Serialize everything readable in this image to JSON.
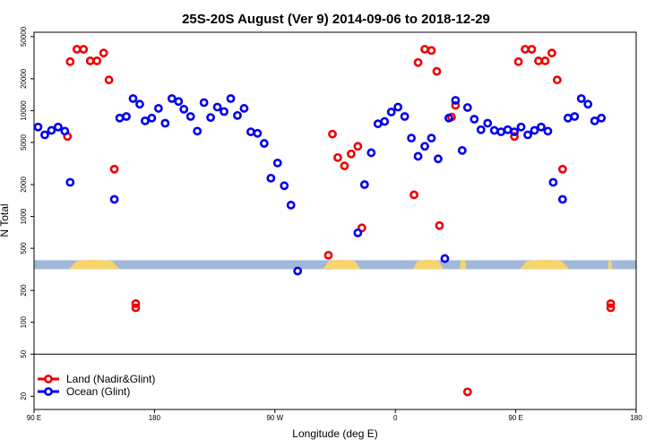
{
  "chart_data": {
    "type": "scatter",
    "title": "25S-20S August (Ver 9)   2014-09-06 to 2018-12-29",
    "xlabel": "Longitude (deg E)",
    "ylabel": "N Total",
    "yscale": "log",
    "xlim": [
      90,
      540
    ],
    "ylim": [
      15,
      55000
    ],
    "x_ticks": [
      {
        "value": 90,
        "label": "90 E"
      },
      {
        "value": 180,
        "label": "180"
      },
      {
        "value": 270,
        "label": "90 W"
      },
      {
        "value": 360,
        "label": "0"
      },
      {
        "value": 450,
        "label": "90 E"
      },
      {
        "value": 540,
        "label": "180"
      }
    ],
    "y_ticks": [
      {
        "value": 20,
        "label": "20"
      },
      {
        "value": 50,
        "label": "50"
      },
      {
        "value": 100,
        "label": "100"
      },
      {
        "value": 200,
        "label": "200"
      },
      {
        "value": 500,
        "label": "500"
      },
      {
        "value": 1000,
        "label": "1000"
      },
      {
        "value": 2000,
        "label": "2000"
      },
      {
        "value": 5000,
        "label": "5000"
      },
      {
        "value": 10000,
        "label": "10000"
      },
      {
        "value": 20000,
        "label": "20000"
      },
      {
        "value": 50000,
        "label": "50000"
      }
    ],
    "reference_line": 50,
    "land_band": {
      "value": 350,
      "ocean_color": "#a2b8d8",
      "land_color": "#f7d46c",
      "land_segments": [
        [
          116,
          154
        ],
        [
          306,
          334
        ],
        [
          373,
          396
        ],
        [
          408,
          413
        ],
        [
          453,
          490
        ],
        [
          519,
          522
        ]
      ]
    },
    "legend": {
      "position": "bottom-left"
    },
    "series": [
      {
        "name": "Land (Nadir&Glint)",
        "color": "#ee0000",
        "points": [
          [
            115,
            5700
          ],
          [
            117,
            29000
          ],
          [
            122,
            38000
          ],
          [
            127,
            38000
          ],
          [
            132,
            29500
          ],
          [
            137,
            29500
          ],
          [
            142,
            35000
          ],
          [
            146,
            19500
          ],
          [
            150,
            2800
          ],
          [
            166,
            150
          ],
          [
            166,
            137
          ],
          [
            310,
            430
          ],
          [
            313,
            6000
          ],
          [
            317,
            3600
          ],
          [
            322,
            3000
          ],
          [
            327,
            3900
          ],
          [
            332,
            4600
          ],
          [
            335,
            780
          ],
          [
            374,
            1600
          ],
          [
            377,
            28500
          ],
          [
            382,
            38000
          ],
          [
            387,
            37000
          ],
          [
            391,
            23500
          ],
          [
            393,
            820
          ],
          [
            402,
            8700
          ],
          [
            405,
            11200
          ],
          [
            414,
            22
          ],
          [
            449,
            5700
          ],
          [
            452,
            29000
          ],
          [
            457,
            38000
          ],
          [
            462,
            38000
          ],
          [
            467,
            29500
          ],
          [
            472,
            29500
          ],
          [
            477,
            35000
          ],
          [
            481,
            19500
          ],
          [
            485,
            2800
          ],
          [
            521,
            150
          ],
          [
            521,
            137
          ]
        ]
      },
      {
        "name": "Ocean (Glint)",
        "color": "#0000ee",
        "points": [
          [
            93,
            7000
          ],
          [
            98,
            5900
          ],
          [
            103,
            6500
          ],
          [
            108,
            7000
          ],
          [
            113,
            6400
          ],
          [
            117,
            2100
          ],
          [
            150,
            1450
          ],
          [
            154,
            8500
          ],
          [
            159,
            8800
          ],
          [
            164,
            13000
          ],
          [
            169,
            11500
          ],
          [
            173,
            8000
          ],
          [
            178,
            8500
          ],
          [
            183,
            10500
          ],
          [
            188,
            7600
          ],
          [
            193,
            13000
          ],
          [
            198,
            12200
          ],
          [
            202,
            10300
          ],
          [
            207,
            8800
          ],
          [
            212,
            6400
          ],
          [
            217,
            11900
          ],
          [
            222,
            8600
          ],
          [
            227,
            10800
          ],
          [
            232,
            9800
          ],
          [
            237,
            13000
          ],
          [
            242,
            9000
          ],
          [
            247,
            10500
          ],
          [
            252,
            6300
          ],
          [
            257,
            6100
          ],
          [
            262,
            4900
          ],
          [
            267,
            2300
          ],
          [
            272,
            3200
          ],
          [
            277,
            1950
          ],
          [
            282,
            1280
          ],
          [
            287,
            305
          ],
          [
            332,
            700
          ],
          [
            337,
            2000
          ],
          [
            342,
            4000
          ],
          [
            347,
            7500
          ],
          [
            352,
            7900
          ],
          [
            357,
            9700
          ],
          [
            362,
            10800
          ],
          [
            367,
            8800
          ],
          [
            372,
            5500
          ],
          [
            377,
            3700
          ],
          [
            382,
            4600
          ],
          [
            387,
            5500
          ],
          [
            392,
            3500
          ],
          [
            397,
            400
          ],
          [
            400,
            8500
          ],
          [
            405,
            12500
          ],
          [
            410,
            4200
          ],
          [
            414,
            10700
          ],
          [
            419,
            8300
          ],
          [
            424,
            6600
          ],
          [
            429,
            7600
          ],
          [
            434,
            6500
          ],
          [
            439,
            6300
          ],
          [
            444,
            6600
          ],
          [
            449,
            6300
          ],
          [
            454,
            7000
          ],
          [
            459,
            5900
          ],
          [
            464,
            6500
          ],
          [
            469,
            7000
          ],
          [
            474,
            6400
          ],
          [
            478,
            2100
          ],
          [
            485,
            1450
          ],
          [
            489,
            8500
          ],
          [
            494,
            8800
          ],
          [
            499,
            13000
          ],
          [
            504,
            11500
          ],
          [
            509,
            8000
          ],
          [
            514,
            8500
          ]
        ]
      }
    ]
  }
}
